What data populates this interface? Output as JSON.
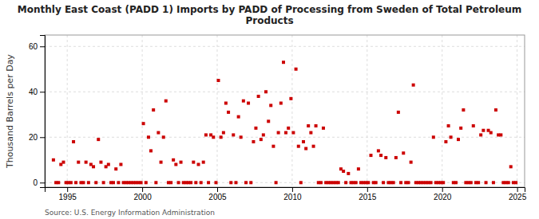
{
  "chart_data": {
    "type": "scatter",
    "title": "Monthly East Coast (PADD 1) Imports by PADD of Processing from Sweden of Total Petroleum\nProducts",
    "y_label": "Thousand Barrels per Day",
    "source": "Source: U.S. Energy Information Administration",
    "color": "#cc0000",
    "marker": "square",
    "grid": true,
    "xlim": [
      1993.5,
      2025.5
    ],
    "ylim": [
      -2,
      65
    ],
    "yticks": [
      0,
      20,
      40,
      60
    ],
    "xticks": [
      1995,
      2000,
      2005,
      2010,
      2015,
      2020,
      2025
    ],
    "x": [
      1994.08,
      1994.25,
      1994.42,
      1994.58,
      1994.75,
      1994.92,
      1995.08,
      1995.25,
      1995.42,
      1995.58,
      1995.75,
      1995.92,
      1996.08,
      1996.25,
      1996.42,
      1996.58,
      1996.75,
      1996.92,
      1997.08,
      1997.25,
      1997.42,
      1997.58,
      1997.75,
      1997.92,
      1998.08,
      1998.25,
      1998.42,
      1998.58,
      1998.75,
      1998.92,
      1999.08,
      1999.25,
      1999.42,
      1999.58,
      1999.75,
      1999.92,
      2000.08,
      2000.25,
      2000.42,
      2000.58,
      2000.75,
      2000.92,
      2001.08,
      2001.25,
      2001.42,
      2001.58,
      2001.75,
      2001.92,
      2002.08,
      2002.25,
      2002.42,
      2002.58,
      2002.75,
      2002.92,
      2003.08,
      2003.25,
      2003.42,
      2003.58,
      2003.75,
      2003.92,
      2004.08,
      2004.25,
      2004.42,
      2004.58,
      2004.75,
      2004.92,
      2005.08,
      2005.25,
      2005.42,
      2005.58,
      2005.75,
      2005.92,
      2006.08,
      2006.25,
      2006.42,
      2006.58,
      2006.75,
      2006.92,
      2007.08,
      2007.25,
      2007.42,
      2007.58,
      2007.75,
      2007.92,
      2008.08,
      2008.25,
      2008.42,
      2008.58,
      2008.75,
      2008.92,
      2009.08,
      2009.25,
      2009.42,
      2009.58,
      2009.75,
      2009.92,
      2010.08,
      2010.25,
      2010.42,
      2010.58,
      2010.75,
      2010.92,
      2011.08,
      2011.25,
      2011.42,
      2011.58,
      2011.75,
      2011.92,
      2012.08,
      2012.25,
      2012.42,
      2012.58,
      2012.75,
      2012.92,
      2013.08,
      2013.25,
      2013.42,
      2013.58,
      2013.75,
      2013.92,
      2014.08,
      2014.25,
      2014.42,
      2014.58,
      2014.75,
      2014.92,
      2015.08,
      2015.25,
      2015.42,
      2015.58,
      2015.75,
      2015.92,
      2016.08,
      2016.25,
      2016.42,
      2016.58,
      2016.75,
      2016.92,
      2017.08,
      2017.25,
      2017.42,
      2017.58,
      2017.75,
      2017.92,
      2018.08,
      2018.25,
      2018.42,
      2018.58,
      2018.75,
      2018.92,
      2019.08,
      2019.25,
      2019.42,
      2019.58,
      2019.75,
      2019.92,
      2020.08,
      2020.25,
      2020.42,
      2020.58,
      2020.75,
      2020.92,
      2021.08,
      2021.25,
      2021.42,
      2021.58,
      2021.75,
      2021.92,
      2022.08,
      2022.25,
      2022.42,
      2022.58,
      2022.75,
      2022.92,
      2023.08,
      2023.25,
      2023.42,
      2023.58,
      2023.75,
      2023.92,
      2024.08,
      2024.25,
      2024.42,
      2024.58,
      2024.75,
      2024.92
    ],
    "values": [
      10,
      0,
      0,
      8,
      9,
      0,
      0,
      0,
      18,
      0,
      9,
      0,
      0,
      9,
      0,
      8,
      7,
      0,
      19,
      9,
      0,
      7,
      8,
      0,
      0,
      6,
      0,
      8,
      0,
      0,
      0,
      0,
      0,
      0,
      0,
      0,
      26,
      0,
      20,
      14,
      32,
      0,
      22,
      9,
      20,
      36,
      0,
      0,
      10,
      8,
      0,
      9,
      0,
      0,
      0,
      0,
      9,
      0,
      8,
      0,
      9,
      21,
      0,
      21,
      20,
      0,
      45,
      20,
      22,
      35,
      31,
      0,
      21,
      0,
      29,
      20,
      36,
      0,
      35,
      0,
      18,
      24,
      38,
      19,
      21,
      40,
      27,
      34,
      16,
      0,
      22,
      35,
      53,
      22,
      24,
      37,
      22,
      50,
      16,
      0,
      18,
      15,
      25,
      22,
      16,
      25,
      0,
      0,
      24,
      0,
      0,
      0,
      0,
      0,
      0,
      6,
      5,
      0,
      4,
      0,
      0,
      0,
      6,
      0,
      0,
      0,
      0,
      12,
      0,
      0,
      14,
      12,
      0,
      11,
      0,
      0,
      0,
      11,
      31,
      0,
      13,
      0,
      0,
      9,
      43,
      0,
      0,
      0,
      0,
      0,
      0,
      0,
      20,
      0,
      0,
      0,
      0,
      18,
      25,
      20,
      0,
      0,
      19,
      24,
      32,
      0,
      0,
      0,
      25,
      0,
      0,
      21,
      23,
      0,
      23,
      22,
      0,
      32,
      21,
      21,
      0,
      0,
      0,
      7,
      0,
      0
    ]
  }
}
